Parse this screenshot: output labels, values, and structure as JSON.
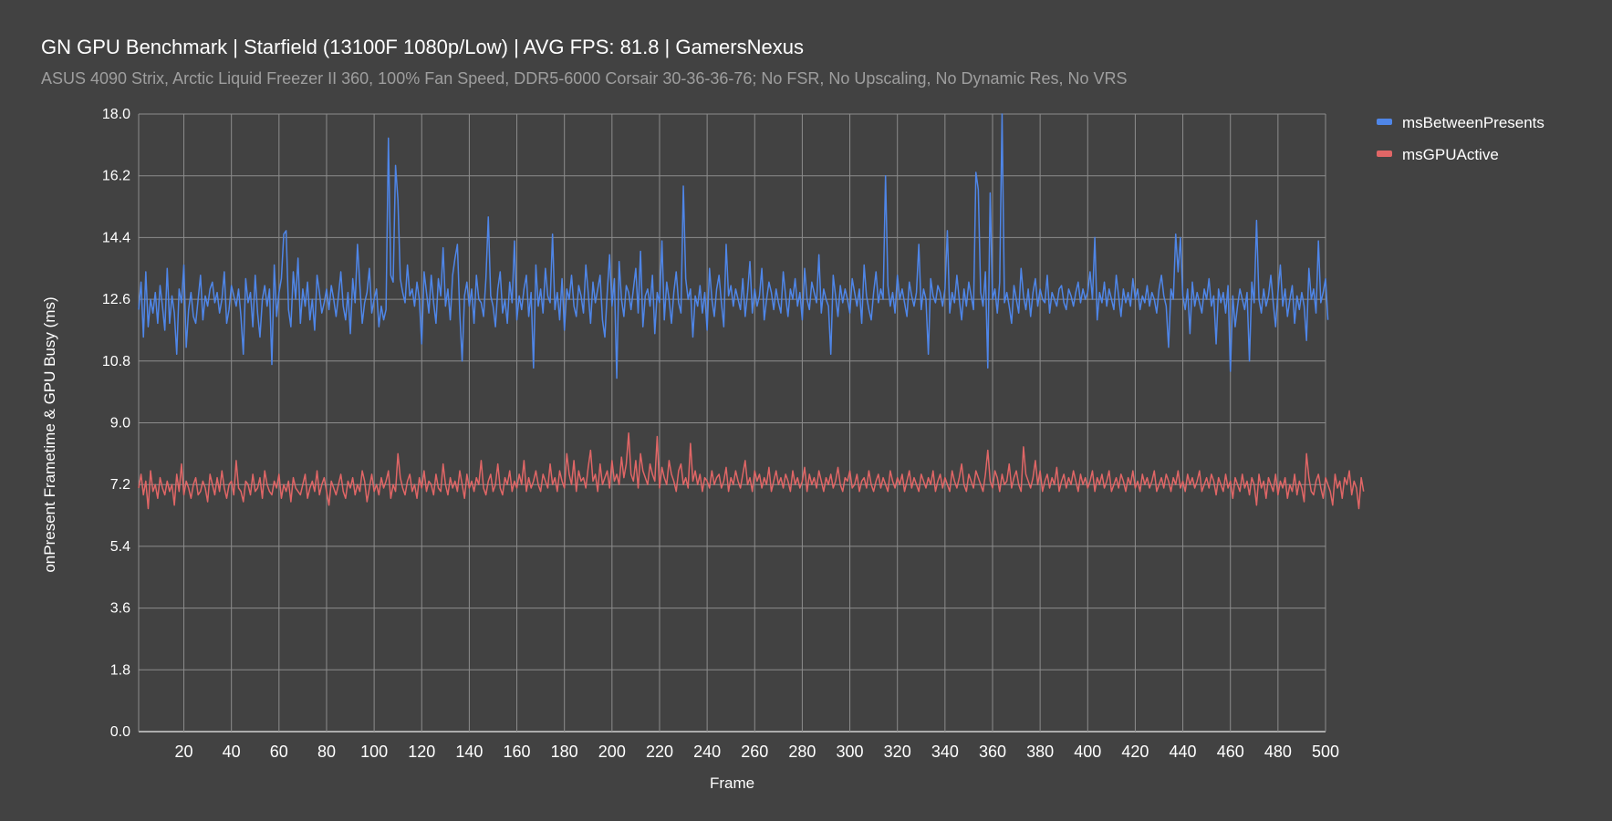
{
  "chart_data": {
    "type": "line",
    "title": "GN GPU Benchmark | Starfield (13100F 1080p/Low) | AVG FPS: 81.8 | GamersNexus",
    "subtitle": "ASUS 4090 Strix, Arctic Liquid Freezer II 360, 100% Fan Speed, DDR5-6000 Corsair 30-36-36-76; No FSR, No Upscaling, No Dynamic Res, No VRS",
    "xlabel": "Frame",
    "ylabel": "onPresent Frametime & GPU Busy (ms)",
    "xlim": [
      1,
      500
    ],
    "ylim": [
      0,
      18
    ],
    "x_ticks": [
      "20",
      "40",
      "60",
      "80",
      "100",
      "120",
      "140",
      "160",
      "180",
      "200",
      "220",
      "240",
      "260",
      "280",
      "300",
      "320",
      "340",
      "360",
      "380",
      "400",
      "420",
      "440",
      "460",
      "480",
      "500"
    ],
    "y_ticks": [
      "0.0",
      "1.8",
      "3.6",
      "5.4",
      "7.2",
      "9.0",
      "10.8",
      "12.6",
      "14.4",
      "16.2",
      "18.0"
    ],
    "grid": true,
    "legend_position": "top-right",
    "x": {
      "start": 1,
      "end": 500,
      "step": 1
    },
    "series": [
      {
        "name": "msBetweenPresents",
        "color": "#4f86e8",
        "values": [
          12.3,
          13.1,
          11.5,
          13.4,
          11.8,
          12.6,
          12.2,
          12.8,
          11.9,
          13.0,
          12.4,
          11.7,
          13.5,
          11.9,
          12.7,
          12.2,
          11.0,
          12.9,
          12.5,
          13.6,
          11.2,
          12.3,
          12.8,
          12.1,
          11.9,
          12.6,
          13.3,
          12.0,
          12.7,
          12.4,
          12.9,
          13.1,
          12.5,
          12.8,
          12.2,
          12.6,
          13.4,
          11.9,
          12.3,
          13.0,
          12.7,
          12.4,
          12.9,
          12.1,
          11.0,
          13.2,
          12.5,
          12.8,
          11.8,
          13.3,
          12.2,
          11.5,
          12.6,
          13.0,
          12.4,
          12.9,
          10.7,
          13.6,
          12.1,
          12.8,
          13.2,
          14.5,
          14.6,
          12.3,
          11.8,
          13.4,
          12.6,
          13.8,
          11.9,
          12.9,
          12.4,
          13.1,
          12.0,
          12.6,
          11.7,
          13.3,
          12.8,
          12.2,
          12.5,
          12.9,
          12.3,
          13.0,
          12.6,
          12.1,
          12.7,
          13.4,
          12.4,
          12.0,
          12.8,
          11.6,
          13.2,
          12.5,
          14.2,
          13.0,
          11.9,
          12.5,
          12.8,
          13.5,
          12.2,
          12.6,
          12.9,
          11.8,
          12.4,
          12.0,
          12.3,
          17.3,
          13.3,
          13.1,
          16.5,
          15.5,
          13.2,
          12.8,
          12.5,
          13.6,
          12.7,
          12.9,
          12.4,
          13.1,
          12.6,
          11.3,
          13.4,
          12.8,
          12.2,
          13.3,
          12.5,
          11.9,
          13.2,
          12.7,
          14.1,
          12.4,
          12.9,
          12.0,
          13.3,
          13.8,
          14.2,
          12.2,
          10.8,
          12.7,
          13.1,
          12.4,
          12.9,
          11.9,
          13.3,
          12.6,
          12.5,
          12.1,
          13.2,
          15.0,
          12.7,
          12.4,
          11.8,
          12.9,
          13.4,
          12.2,
          12.6,
          11.9,
          13.1,
          12.5,
          14.3,
          12.0,
          12.7,
          12.3,
          12.9,
          13.3,
          12.1,
          12.8,
          10.6,
          13.6,
          12.4,
          12.9,
          12.2,
          13.5,
          12.7,
          12.5,
          14.5,
          12.3,
          12.8,
          12.0,
          13.2,
          11.7,
          12.9,
          12.6,
          13.3,
          12.4,
          12.1,
          13.0,
          12.7,
          12.2,
          13.6,
          12.8,
          11.9,
          13.1,
          12.5,
          12.9,
          13.3,
          12.0,
          11.5,
          12.8,
          13.9,
          12.4,
          13.2,
          10.3,
          13.7,
          12.6,
          12.1,
          13.0,
          12.8,
          12.3,
          12.9,
          13.5,
          12.2,
          14.0,
          11.8,
          12.7,
          12.9,
          12.4,
          13.3,
          11.6,
          12.8,
          12.5,
          14.3,
          12.0,
          13.1,
          12.6,
          11.9,
          12.8,
          13.4,
          12.5,
          12.2,
          15.9,
          13.2,
          12.6,
          12.9,
          11.5,
          12.7,
          12.4,
          13.0,
          12.2,
          12.8,
          11.7,
          13.5,
          12.6,
          12.1,
          12.9,
          13.3,
          12.5,
          11.8,
          14.2,
          12.7,
          13.0,
          12.4,
          12.9,
          12.6,
          12.3,
          13.2,
          12.1,
          12.8,
          13.7,
          12.2,
          12.9,
          12.4,
          12.7,
          13.5,
          12.0,
          12.6,
          13.1,
          12.8,
          12.3,
          12.9,
          12.5,
          12.2,
          13.4,
          12.7,
          12.1,
          12.9,
          12.6,
          13.2,
          12.4,
          12.8,
          12.0,
          13.5,
          12.6,
          12.3,
          13.1,
          12.8,
          12.5,
          13.9,
          12.2,
          12.9,
          12.6,
          12.4,
          11.0,
          13.3,
          12.7,
          12.1,
          13.0,
          12.5,
          12.9,
          12.6,
          12.2,
          13.2,
          12.8,
          12.4,
          12.9,
          11.9,
          13.6,
          12.7,
          12.3,
          12.0,
          12.8,
          13.4,
          12.5,
          12.9,
          12.6,
          16.2,
          13.0,
          12.4,
          12.8,
          12.2,
          13.3,
          12.6,
          12.9,
          12.5,
          12.1,
          13.1,
          12.7,
          12.4,
          12.8,
          14.2,
          12.3,
          12.9,
          12.6,
          11.0,
          13.2,
          12.7,
          12.5,
          13.0,
          12.8,
          12.4,
          12.9,
          14.6,
          12.2,
          12.8,
          12.5,
          13.3,
          12.6,
          12.0,
          12.9,
          12.4,
          13.1,
          12.7,
          12.3,
          16.3,
          15.8,
          12.8,
          12.4,
          13.4,
          10.6,
          15.7,
          12.6,
          12.9,
          12.2,
          13.1,
          18.0,
          12.5,
          12.8,
          12.4,
          11.9,
          13.0,
          12.6,
          12.2,
          13.5,
          12.7,
          12.3,
          12.9,
          12.1,
          12.8,
          13.2,
          12.4,
          12.9,
          12.6,
          12.5,
          13.3,
          12.2,
          12.8,
          12.6,
          12.4,
          12.9,
          13.0,
          12.5,
          12.3,
          12.9,
          12.7,
          12.4,
          12.8,
          13.1,
          12.5,
          12.9,
          12.6,
          12.8,
          13.4,
          12.6,
          14.4,
          12.0,
          12.8,
          12.5,
          13.1,
          12.4,
          12.9,
          12.6,
          12.3,
          13.3,
          12.7,
          12.1,
          12.9,
          12.5,
          12.8,
          12.4,
          13.2,
          12.6,
          12.9,
          12.3,
          12.7,
          12.5,
          13.0,
          12.4,
          12.8,
          12.6,
          12.2,
          12.9,
          13.3,
          12.7,
          12.4,
          11.2,
          12.9,
          12.6,
          14.5,
          13.4,
          14.4,
          12.7,
          12.3,
          12.9,
          11.6,
          13.1,
          12.4,
          12.8,
          12.5,
          12.2,
          12.9,
          12.6,
          13.2,
          12.4,
          12.7,
          11.3,
          12.9,
          12.5,
          12.8,
          12.2,
          13.0,
          10.5,
          12.7,
          11.8,
          12.4,
          12.9,
          12.6,
          12.3,
          12.8,
          10.8,
          13.1,
          12.5,
          14.9,
          12.6,
          12.2,
          12.9,
          12.4,
          12.7,
          13.3,
          12.5,
          11.8,
          12.8,
          13.6,
          12.4,
          12.9,
          12.1,
          12.6,
          13.0,
          11.9,
          12.7,
          12.3,
          12.8,
          12.4,
          11.4,
          13.5,
          12.6,
          12.9,
          12.2,
          14.3,
          12.5,
          12.8,
          13.2,
          12.0
        ]
      },
      {
        "name": "msGPUActive",
        "color": "#e06666",
        "values": [
          7.1,
          7.5,
          6.9,
          7.3,
          6.5,
          7.6,
          7.0,
          7.2,
          6.8,
          7.4,
          7.1,
          6.9,
          7.3,
          7.0,
          7.2,
          6.6,
          7.5,
          7.0,
          7.8,
          6.9,
          7.3,
          7.1,
          6.8,
          7.2,
          7.4,
          6.9,
          7.0,
          7.3,
          7.1,
          6.7,
          7.5,
          7.2,
          6.9,
          7.4,
          7.0,
          7.6,
          7.1,
          6.8,
          7.2,
          7.3,
          6.9,
          7.9,
          7.1,
          7.0,
          6.7,
          7.3,
          7.2,
          6.9,
          7.5,
          7.0,
          7.1,
          7.4,
          6.8,
          7.6,
          7.2,
          7.0,
          6.9,
          7.3,
          7.1,
          7.5,
          6.8,
          7.2,
          7.0,
          7.3,
          6.7,
          7.4,
          7.1,
          7.0,
          6.9,
          7.2,
          7.5,
          6.8,
          7.1,
          7.3,
          7.0,
          7.6,
          6.9,
          7.2,
          7.4,
          7.0,
          6.6,
          7.3,
          7.1,
          6.9,
          7.2,
          7.5,
          7.0,
          6.8,
          7.3,
          7.1,
          7.4,
          6.9,
          7.2,
          7.0,
          7.6,
          7.3,
          6.7,
          7.1,
          7.5,
          7.0,
          7.2,
          6.9,
          7.4,
          7.1,
          7.3,
          7.6,
          6.8,
          7.2,
          7.0,
          8.1,
          7.4,
          7.1,
          6.9,
          7.3,
          7.5,
          7.0,
          7.2,
          6.8,
          7.4,
          7.1,
          7.6,
          7.0,
          7.3,
          7.2,
          6.9,
          7.5,
          7.1,
          7.0,
          7.8,
          7.2,
          6.9,
          7.4,
          7.1,
          7.3,
          7.0,
          7.6,
          7.2,
          6.8,
          7.5,
          7.1,
          7.3,
          7.0,
          7.4,
          7.2,
          7.9,
          7.1,
          6.9,
          7.3,
          7.5,
          7.0,
          7.2,
          7.8,
          7.1,
          6.9,
          7.4,
          7.2,
          7.6,
          7.0,
          7.3,
          7.1,
          7.5,
          7.2,
          7.9,
          7.0,
          7.4,
          7.1,
          7.3,
          7.6,
          7.2,
          7.0,
          7.5,
          7.3,
          7.1,
          7.8,
          7.2,
          7.4,
          7.0,
          7.6,
          7.3,
          7.1,
          8.1,
          7.5,
          7.2,
          7.9,
          7.0,
          7.6,
          7.3,
          7.4,
          7.1,
          7.7,
          8.2,
          7.3,
          7.5,
          7.0,
          7.8,
          7.2,
          7.4,
          7.6,
          7.1,
          7.9,
          7.3,
          7.5,
          7.2,
          8.0,
          7.4,
          7.8,
          8.7,
          7.5,
          7.3,
          7.9,
          7.1,
          8.1,
          7.6,
          7.4,
          7.2,
          7.8,
          7.5,
          7.3,
          8.6,
          7.1,
          7.7,
          7.4,
          7.2,
          7.9,
          7.5,
          7.3,
          7.0,
          7.6,
          7.8,
          7.2,
          7.4,
          7.1,
          8.4,
          7.3,
          7.6,
          7.2,
          7.5,
          7.0,
          7.4,
          7.3,
          7.1,
          7.6,
          7.2,
          7.4,
          7.5,
          7.1,
          7.3,
          7.7,
          7.0,
          7.4,
          7.2,
          7.6,
          7.3,
          7.1,
          7.5,
          7.9,
          7.2,
          7.4,
          7.0,
          7.6,
          7.3,
          7.5,
          7.1,
          7.4,
          7.2,
          7.7,
          7.0,
          7.3,
          7.6,
          7.2,
          7.4,
          7.1,
          7.5,
          7.3,
          7.0,
          7.6,
          7.2,
          7.4,
          7.1,
          7.3,
          7.7,
          7.0,
          7.5,
          7.2,
          7.4,
          7.1,
          7.6,
          7.3,
          7.0,
          7.4,
          7.2,
          7.5,
          7.1,
          7.3,
          7.7,
          7.2,
          7.0,
          7.4,
          7.3,
          7.6,
          7.1,
          7.2,
          7.5,
          7.0,
          7.3,
          7.4,
          7.1,
          7.6,
          7.2,
          7.0,
          7.3,
          7.5,
          7.1,
          7.4,
          7.2,
          7.0,
          7.6,
          7.3,
          7.1,
          7.4,
          7.2,
          7.5,
          7.0,
          7.3,
          7.6,
          7.1,
          7.4,
          7.2,
          7.0,
          7.5,
          7.3,
          7.1,
          7.4,
          7.2,
          7.6,
          7.0,
          7.3,
          7.5,
          7.1,
          7.4,
          7.2,
          7.0,
          7.6,
          7.3,
          7.1,
          7.4,
          7.8,
          7.2,
          7.0,
          7.5,
          7.3,
          7.1,
          7.6,
          7.4,
          7.2,
          7.0,
          7.5,
          8.2,
          7.3,
          7.1,
          7.6,
          7.4,
          7.0,
          7.5,
          7.2,
          7.3,
          7.8,
          7.1,
          7.4,
          7.6,
          7.2,
          7.0,
          8.3,
          7.5,
          7.3,
          7.1,
          7.4,
          7.9,
          7.2,
          7.6,
          7.0,
          7.3,
          7.5,
          7.1,
          7.4,
          7.2,
          7.7,
          7.0,
          7.3,
          7.5,
          7.1,
          7.4,
          7.2,
          7.6,
          7.3,
          7.0,
          7.5,
          7.2,
          7.4,
          7.1,
          7.3,
          7.6,
          7.0,
          7.4,
          7.2,
          7.5,
          7.1,
          7.3,
          7.6,
          7.0,
          7.2,
          7.4,
          7.1,
          7.5,
          7.3,
          7.0,
          7.4,
          7.2,
          7.6,
          7.1,
          7.3,
          7.0,
          7.5,
          7.2,
          7.4,
          7.1,
          7.3,
          7.6,
          7.0,
          7.2,
          7.4,
          7.1,
          7.5,
          7.3,
          7.0,
          7.4,
          7.2,
          7.6,
          7.1,
          7.3,
          7.0,
          7.5,
          7.2,
          7.4,
          7.1,
          7.3,
          7.6,
          7.0,
          7.2,
          7.4,
          7.1,
          7.5,
          7.3,
          6.9,
          7.4,
          7.2,
          7.0,
          7.5,
          7.1,
          7.3,
          6.8,
          7.4,
          7.2,
          7.0,
          7.5,
          7.1,
          7.3,
          6.9,
          7.4,
          7.2,
          6.6,
          7.5,
          7.1,
          7.3,
          6.8,
          7.4,
          7.2,
          7.0,
          7.5,
          6.9,
          7.3,
          7.1,
          7.4,
          6.8,
          7.2,
          7.0,
          7.5,
          6.9,
          7.3,
          7.1,
          6.7,
          8.1,
          7.4,
          7.0,
          6.9,
          7.3,
          7.5,
          7.1,
          6.8,
          7.4,
          7.2,
          7.0,
          6.6,
          7.5,
          7.1,
          7.3,
          6.8,
          7.4,
          7.2,
          7.6,
          6.9,
          7.3,
          7.1,
          6.5,
          7.4,
          7.0
        ]
      }
    ]
  }
}
